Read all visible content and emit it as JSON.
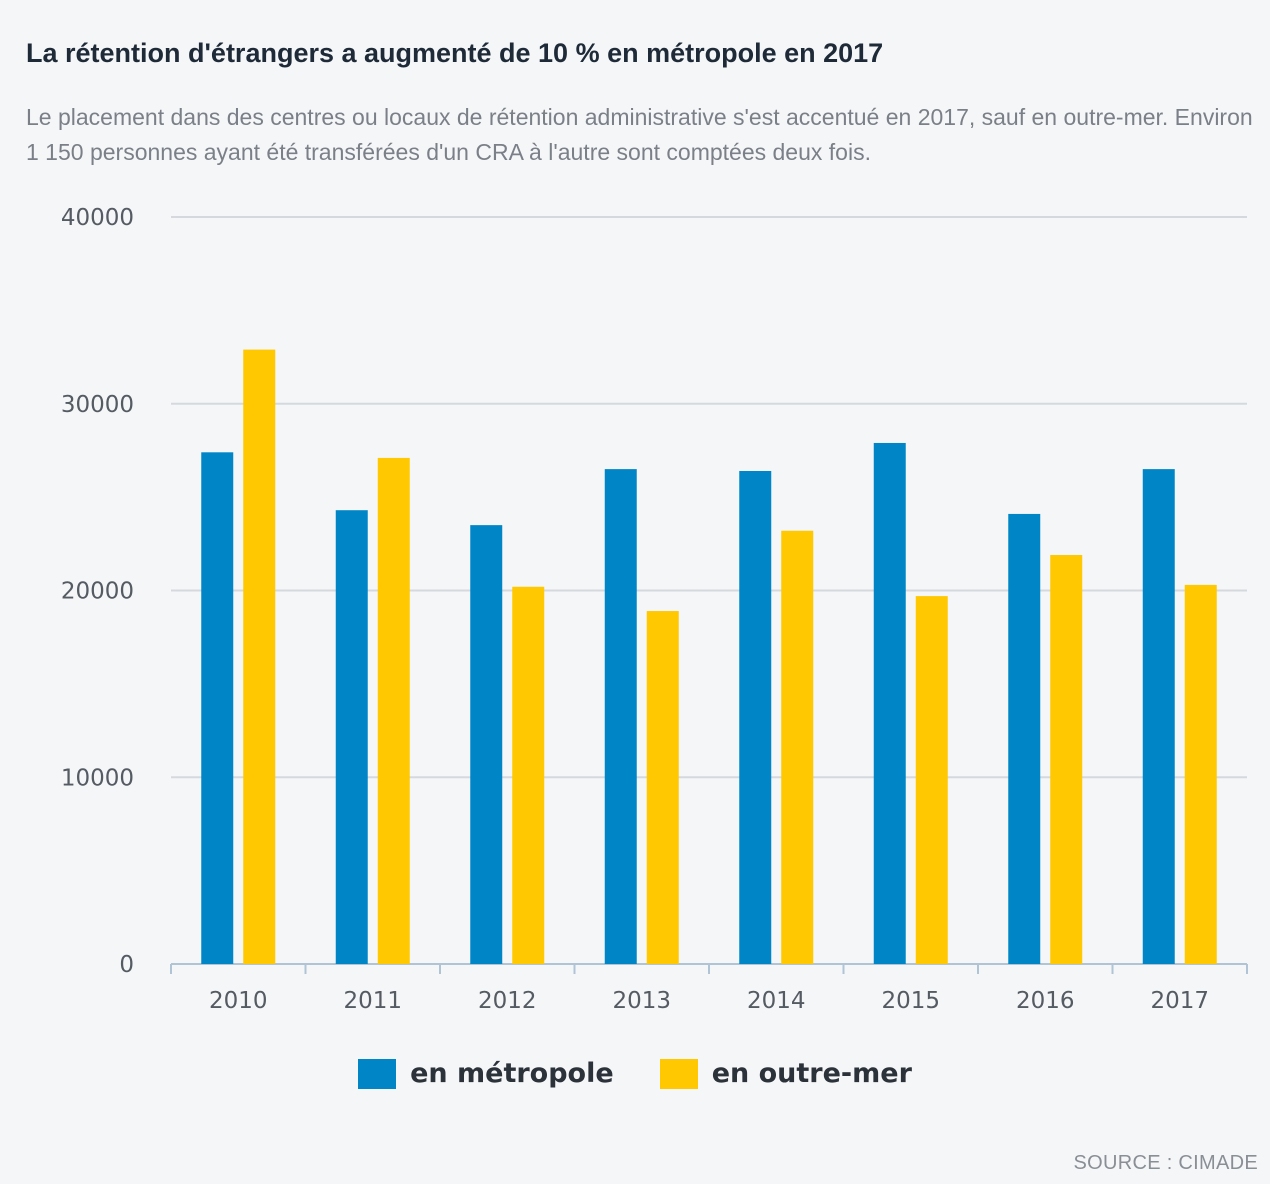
{
  "header": {
    "title": "La rétention d'étrangers a augmenté de 10 % en métropole en 2017",
    "subtitle": "Le placement dans des centres ou locaux de rétention administrative s'est accentué en 2017, sauf en outre-mer. Environ 1 150 personnes ayant été transférées d'un CRA à l'autre sont comptées deux fois."
  },
  "footer": {
    "source": "SOURCE : CIMADE"
  },
  "colors": {
    "metropole": "#0085c7",
    "outremer": "#ffc800",
    "grid": "#d5d8dd",
    "axis": "#b0c4d6"
  },
  "chart_data": {
    "type": "bar",
    "categories": [
      "2010",
      "2011",
      "2012",
      "2013",
      "2014",
      "2015",
      "2016",
      "2017"
    ],
    "series": [
      {
        "name": "en métropole",
        "values": [
          27400,
          24300,
          23500,
          26500,
          26400,
          27900,
          24100,
          26500
        ]
      },
      {
        "name": "en outre-mer",
        "values": [
          32900,
          27100,
          20200,
          18900,
          23200,
          19700,
          21900,
          20300
        ]
      }
    ],
    "ylim": [
      0,
      40000
    ],
    "yticks": [
      "0",
      "10000",
      "20000",
      "30000",
      "40000"
    ],
    "grid": true,
    "legend_position": "bottom"
  }
}
